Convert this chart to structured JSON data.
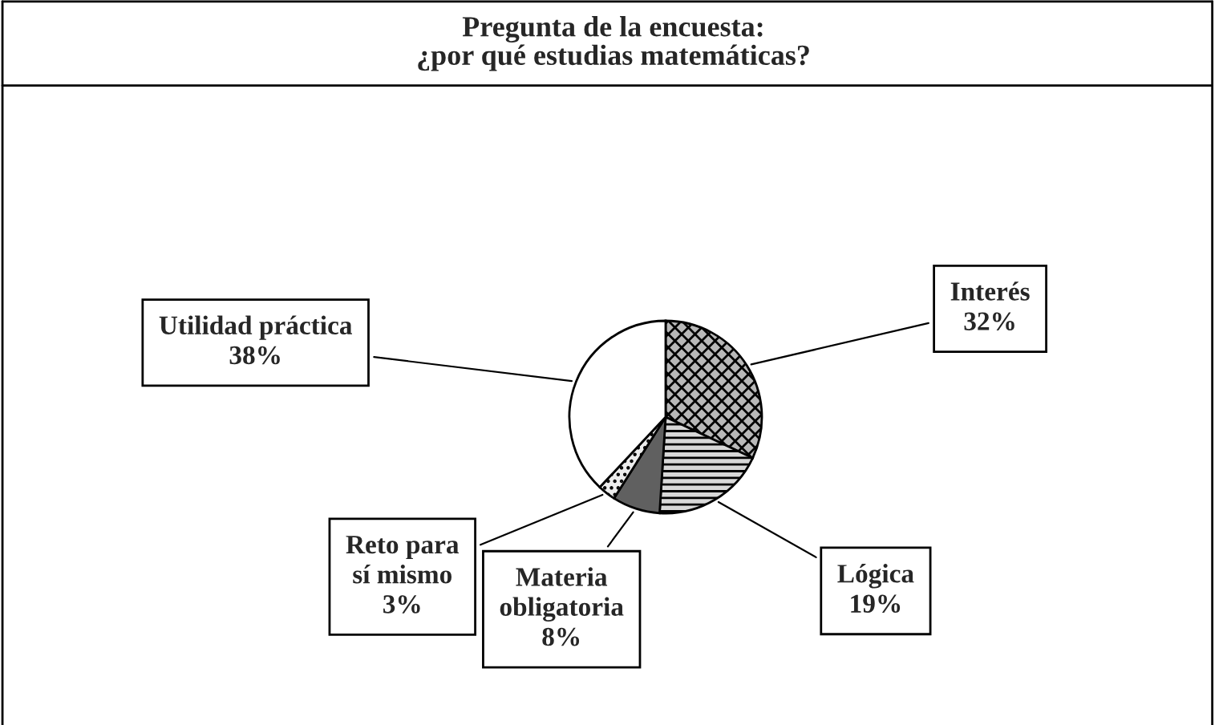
{
  "chart_data": {
    "type": "pie",
    "title": "Pregunta de la encuesta:\n¿por qué estudias matemáticas?",
    "categories": [
      "Interés",
      "Lógica",
      "Materia\nobligatoria",
      "Reto para\nsí mismo",
      "Utilidad práctica"
    ],
    "values": [
      32,
      19,
      8,
      3,
      38
    ],
    "value_labels": [
      "32%",
      "19%",
      "8%",
      "3%",
      "38%"
    ],
    "colors": [
      "#b8b8b8",
      "#d8d8d8",
      "#606060",
      "#ececec",
      "#ffffff"
    ],
    "legend": false
  }
}
